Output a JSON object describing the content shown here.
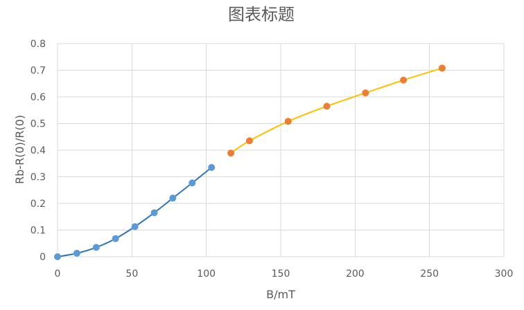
{
  "chart_data": {
    "type": "scatter",
    "title": "图表标题",
    "xlabel": "B/mT",
    "ylabel": "Rb-R(0)/R(0)",
    "xlim": [
      0,
      300
    ],
    "ylim": [
      0,
      0.8
    ],
    "x_ticks": [
      0,
      50,
      100,
      150,
      200,
      250,
      300
    ],
    "y_ticks": [
      0,
      0.1,
      0.2,
      0.3,
      0.4,
      0.5,
      0.6,
      0.7,
      0.8
    ],
    "x_tick_labels": [
      "0",
      "50",
      "100",
      "150",
      "200",
      "250",
      "300"
    ],
    "y_tick_labels": [
      "0",
      "0.1",
      "0.2",
      "0.3",
      "0.4",
      "0.5",
      "0.6",
      "0.7",
      "0.8"
    ],
    "grid": true,
    "legend": "none",
    "series": [
      {
        "line_color": "#2e75b6",
        "marker_color": "#5b9bd5",
        "smooth": true,
        "points": [
          {
            "x": 0,
            "y": 0.0
          },
          {
            "x": 13,
            "y": 0.013
          },
          {
            "x": 26,
            "y": 0.035
          },
          {
            "x": 39,
            "y": 0.068
          },
          {
            "x": 52,
            "y": 0.113
          },
          {
            "x": 65,
            "y": 0.165
          },
          {
            "x": 77.5,
            "y": 0.22
          },
          {
            "x": 90.5,
            "y": 0.277
          },
          {
            "x": 103.5,
            "y": 0.335
          }
        ]
      },
      {
        "line_color": "#ffc000",
        "marker_color": "#ed7d31",
        "smooth": true,
        "points": [
          {
            "x": 116.5,
            "y": 0.389
          },
          {
            "x": 129,
            "y": 0.435
          },
          {
            "x": 155,
            "y": 0.508
          },
          {
            "x": 181,
            "y": 0.565
          },
          {
            "x": 207,
            "y": 0.615
          },
          {
            "x": 232.5,
            "y": 0.663
          },
          {
            "x": 258.5,
            "y": 0.708
          }
        ]
      }
    ]
  }
}
